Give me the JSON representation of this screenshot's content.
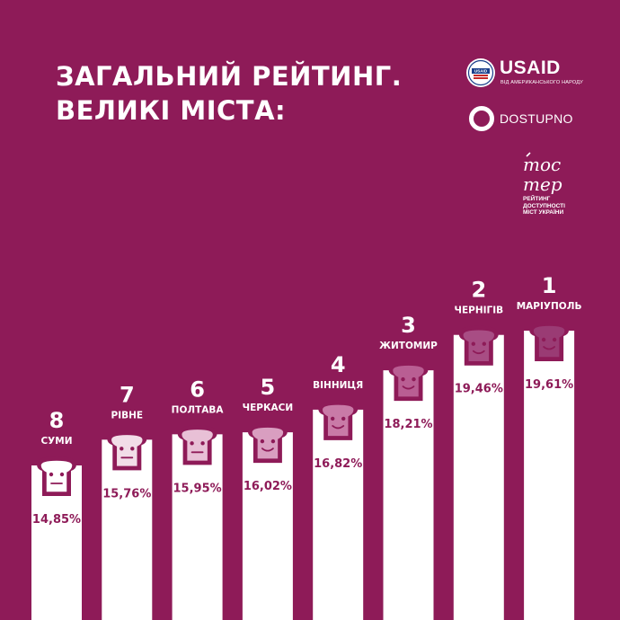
{
  "header": {
    "title_line1": "ЗАГАЛЬНИЙ РЕЙТИНГ.",
    "title_line2": "ВЕЛИКІ МІСТА:"
  },
  "logos": {
    "usaid_name": "USAID",
    "usaid_tagline": "ВІД АМЕРИКАНСЬКОГО НАРОДУ",
    "usaid_seal_text": "USAID",
    "dostupno_name": "DOSTUPNO",
    "toster_mark_line1": "тос",
    "toster_mark_line2": "тер",
    "toster_sub_line1": "РЕЙТИНГ",
    "toster_sub_line2": "ДОСТУПНОСТІ",
    "toster_sub_line3": "МІСТ УКРАЇНИ"
  },
  "colors": {
    "background": "#8e1b58",
    "bar": "#ffffff",
    "text": "#8e1b58",
    "rank_colors": [
      "#ffffff",
      "#f2dde8",
      "#e8c0d6",
      "#d99ec0",
      "#c97aa7",
      "#b95e93",
      "#a84d84",
      "#9a3b74"
    ]
  },
  "chart_data": {
    "type": "bar",
    "title": "ЗАГАЛЬНИЙ РЕЙТИНГ. ВЕЛИКІ МІСТА:",
    "value_suffix": "%",
    "ylim": [
      0,
      20
    ],
    "grid": false,
    "bars": [
      {
        "rank": "8",
        "city": "СУМИ",
        "value": 14.85,
        "label": "14,85%",
        "face": "neutral"
      },
      {
        "rank": "7",
        "city": "РІВНЕ",
        "value": 15.76,
        "label": "15,76%",
        "face": "neutral"
      },
      {
        "rank": "6",
        "city": "ПОЛТАВА",
        "value": 15.95,
        "label": "15,95%",
        "face": "neutral"
      },
      {
        "rank": "5",
        "city": "ЧЕРКАСИ",
        "value": 16.02,
        "label": "16,02%",
        "face": "smile"
      },
      {
        "rank": "4",
        "city": "ВІННИЦЯ",
        "value": 16.82,
        "label": "16,82%",
        "face": "smile"
      },
      {
        "rank": "3",
        "city": "ЖИТОМИР",
        "value": 18.21,
        "label": "18,21%",
        "face": "smile"
      },
      {
        "rank": "2",
        "city": "ЧЕРНІГІВ",
        "value": 19.46,
        "label": "19,46%",
        "face": "smile"
      },
      {
        "rank": "1",
        "city": "МАРІУПОЛЬ",
        "value": 19.61,
        "label": "19,61%",
        "face": "smile"
      }
    ]
  }
}
